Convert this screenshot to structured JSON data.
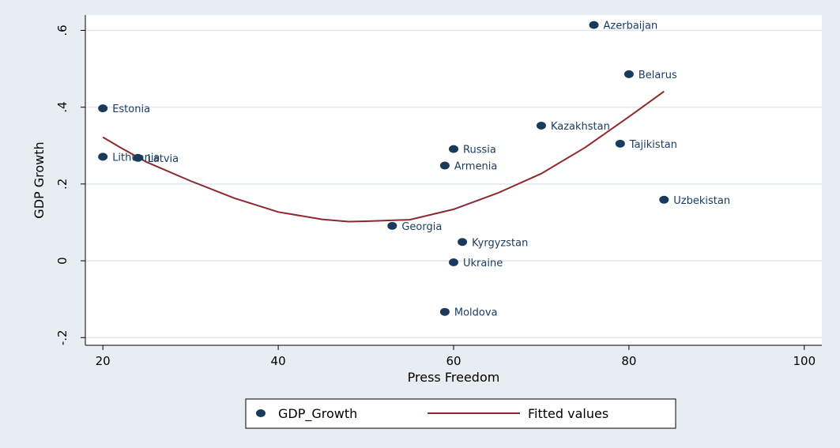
{
  "chart_data": {
    "type": "scatter",
    "title": "",
    "xlabel": "Press Freedom",
    "ylabel": "GDP Growth",
    "xlim": [
      18,
      102
    ],
    "ylim": [
      -0.22,
      0.64
    ],
    "x_ticks": [
      20,
      40,
      60,
      80,
      100
    ],
    "x_tick_labels": [
      "20",
      "40",
      "60",
      "80",
      "100"
    ],
    "y_ticks": [
      -0.2,
      0,
      0.2,
      0.4,
      0.6
    ],
    "y_tick_labels": [
      "-.2",
      "0",
      ".2",
      ".4",
      ".6"
    ],
    "grid": true,
    "legend_position": "bottom",
    "colors": {
      "scatter": "#1a3a5c",
      "fit": "#8b2a2e",
      "plot_background": "#e8edf4",
      "plot_area": "#ffffff",
      "grid": "#e1e7ef"
    },
    "series": [
      {
        "name": "GDP_Growth",
        "type": "scatter",
        "points": [
          {
            "label": "Estonia",
            "x": 20,
            "y": 0.397
          },
          {
            "label": "Lithuania",
            "x": 20,
            "y": 0.271
          },
          {
            "label": "Latvia",
            "x": 24,
            "y": 0.268
          },
          {
            "label": "Georgia",
            "x": 53,
            "y": 0.091
          },
          {
            "label": "Armenia",
            "x": 59,
            "y": 0.248
          },
          {
            "label": "Moldova",
            "x": 59,
            "y": -0.133
          },
          {
            "label": "Russia",
            "x": 60,
            "y": 0.291
          },
          {
            "label": "Ukraine",
            "x": 60,
            "y": -0.004
          },
          {
            "label": "Kyrgyzstan",
            "x": 61,
            "y": 0.049
          },
          {
            "label": "Kazakhstan",
            "x": 70,
            "y": 0.352
          },
          {
            "label": "Azerbaijan",
            "x": 76,
            "y": 0.614
          },
          {
            "label": "Tajikistan",
            "x": 79,
            "y": 0.305
          },
          {
            "label": "Belarus",
            "x": 80,
            "y": 0.486
          },
          {
            "label": "Uzbekistan",
            "x": 84,
            "y": 0.159
          }
        ]
      },
      {
        "name": "Fitted values",
        "type": "line",
        "x": [
          20,
          22,
          25,
          30,
          35,
          40,
          45,
          48,
          50,
          55,
          60,
          65,
          70,
          75,
          80,
          84
        ],
        "y": [
          0.322,
          0.295,
          0.257,
          0.208,
          0.163,
          0.127,
          0.108,
          0.102,
          0.103,
          0.107,
          0.134,
          0.176,
          0.227,
          0.295,
          0.375,
          0.441
        ]
      }
    ]
  }
}
